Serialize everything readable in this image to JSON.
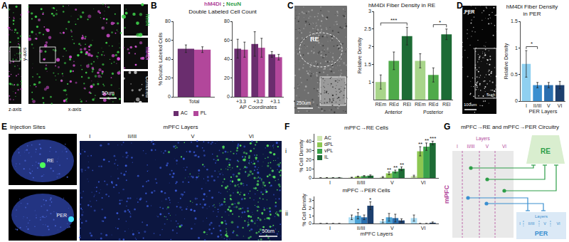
{
  "panels": {
    "A": {
      "letter": "A",
      "axes": [
        "z-axis",
        "y-axis",
        "x-axis"
      ],
      "scale_bar": "50um",
      "insets": [
        {
          "text": "NeuN",
          "color": "#3fd24a"
        },
        {
          "text": "hM4Di",
          "color": "#e05adf"
        },
        {
          "text": "Combined",
          "color": "#ffffff"
        }
      ]
    },
    "B": {
      "letter": "B",
      "header": [
        {
          "text": "hM4Di",
          "color": "#b2479b"
        },
        {
          "text": " ; ",
          "color": "#222222"
        },
        {
          "text": "NeuN",
          "color": "#2e9e48"
        }
      ],
      "title": "Double Labeled Cell Count"
    },
    "C": {
      "letter": "C",
      "image_label": "RE",
      "scale_bar": "250um"
    },
    "D": {
      "letter": "D",
      "image_label": "PER",
      "scale_bar": "100um",
      "inset_scale_bar": "5um"
    },
    "E": {
      "letter": "E",
      "injection_title": "Injection Sites",
      "injection_labels": [
        "RE",
        "PER"
      ],
      "layers_title": "mPFC Layers",
      "layers": [
        "I",
        "II/III",
        "V",
        "VI"
      ],
      "scale_bar": "50um"
    },
    "F": {
      "letter": "F"
    },
    "G": {
      "letter": "G",
      "title": "mPFC→RE and mPFC→PER Circuitry",
      "mpfc": {
        "label": "mPFC",
        "layers_title": "Layers",
        "layers": [
          "I",
          "II/III",
          "V",
          "VI"
        ]
      },
      "re": {
        "label": "RE"
      },
      "per": {
        "label": "PER",
        "layers_title": "Layers",
        "layers": [
          "I",
          "II/III",
          "V",
          "VI"
        ]
      }
    }
  },
  "chart_data": [
    {
      "type": "bar",
      "y_title": "% Double Labeled Cells",
      "categories": [
        "Total"
      ],
      "series": [
        {
          "name": "AC",
          "color": "#6a2d6e",
          "values": [
            51
          ],
          "errors": [
            4
          ]
        },
        {
          "name": "PL",
          "color": "#b2479b",
          "values": [
            50
          ],
          "errors": [
            3
          ]
        }
      ],
      "ylim": [
        0,
        80
      ],
      "yticks": [
        0,
        20,
        40,
        60,
        80
      ],
      "legend": "bottom"
    },
    {
      "type": "bar",
      "x_title": "AP Coordinates",
      "categories": [
        "+3.3",
        "+3.2",
        "+3.1"
      ],
      "series": [
        {
          "name": "AC",
          "color": "#6a2d6e",
          "values": [
            51,
            56,
            45
          ],
          "errors": [
            10,
            13,
            3
          ]
        },
        {
          "name": "PL",
          "color": "#b2479b",
          "values": [
            50,
            52,
            42
          ],
          "errors": [
            8,
            10,
            3
          ]
        }
      ],
      "ylim": [
        0,
        80
      ],
      "yticks": [
        0,
        20,
        40,
        60,
        80
      ]
    },
    {
      "type": "bar",
      "title": "hM4Di Fiber Density in RE",
      "y_title": "Relative Density",
      "categories": [
        "REm",
        "REd",
        "REl",
        "REm",
        "REd",
        "REl"
      ],
      "groups": [
        {
          "label": "Anterior",
          "from": 0,
          "to": 2
        },
        {
          "label": "Posterior",
          "from": 3,
          "to": 5
        }
      ],
      "values": [
        1.0,
        1.6,
        2.3,
        1.6,
        1.2,
        2.35
      ],
      "errors": [
        0.2,
        0.25,
        0.25,
        0.2,
        0.2,
        0.15
      ],
      "colors": [
        "#a8d58a",
        "#4faa4a",
        "#1d6b35",
        "#a8d58a",
        "#4faa4a",
        "#1d6b35"
      ],
      "ylim": [
        0.5,
        3
      ],
      "yticks": [
        1,
        1.5,
        2,
        2.5,
        3
      ],
      "annotations": [
        {
          "from": 0,
          "to": 2,
          "text": "***"
        },
        {
          "from": 4,
          "to": 5,
          "text": "*"
        }
      ]
    },
    {
      "type": "bar",
      "title": "hM4Di Fiber Density in PER",
      "y_title": "Relative Density",
      "x_title": "PER Layers",
      "categories": [
        "I",
        "II/III",
        "V",
        "VI"
      ],
      "values": [
        0.7,
        0.3,
        0.3,
        0.3
      ],
      "errors": [
        0.25,
        0.05,
        0.05,
        0.07
      ],
      "colors": [
        "#8fd0f0",
        "#3a8fd0",
        "#2a6fb0",
        "#1c3f6e"
      ],
      "ylim": [
        0,
        1.5
      ],
      "yticks": [
        0,
        0.5,
        1,
        1.5
      ],
      "annotations": [
        {
          "from": 0,
          "to": 1,
          "text": "*"
        }
      ]
    },
    {
      "type": "bar",
      "panel_label": "i",
      "title": "mPFC→RE Cells",
      "y_title": "% Cell Density",
      "categories": [
        "I",
        "II/III",
        "V",
        "VI"
      ],
      "series": [
        {
          "name": "AC",
          "color": "#cfe8b0",
          "values": [
            0.1,
            0.5,
            1,
            2
          ],
          "errors": [
            0.1,
            0.3,
            0.5,
            1
          ]
        },
        {
          "name": "dPL",
          "color": "#8cc751",
          "values": [
            0.2,
            1.5,
            5,
            29
          ],
          "errors": [
            0.1,
            0.5,
            1.5,
            5
          ]
        },
        {
          "name": "vPL",
          "color": "#3aa24a",
          "values": [
            0.2,
            2,
            7,
            34
          ],
          "errors": [
            0.1,
            0.6,
            1.5,
            4
          ]
        },
        {
          "name": "IL",
          "color": "#1d6b35",
          "values": [
            0.3,
            2.5,
            10,
            38
          ],
          "errors": [
            0.2,
            0.8,
            2,
            2
          ]
        }
      ],
      "ylim": [
        0,
        48
      ],
      "yticks": [
        0,
        10,
        20,
        30,
        40
      ],
      "legend": "top left",
      "annotations": [
        {
          "category": "V",
          "series": "dPL",
          "text": "**"
        },
        {
          "category": "V",
          "series": "vPL",
          "text": "**"
        },
        {
          "category": "V",
          "series": "IL",
          "text": "**"
        },
        {
          "category": "VI",
          "series": "dPL",
          "text": "**"
        },
        {
          "category": "VI",
          "series": "vPL",
          "text": "**"
        },
        {
          "category": "VI",
          "series": "IL",
          "text": "***"
        }
      ]
    },
    {
      "type": "bar",
      "panel_label": "ii",
      "title": "mPFC→PER Cells",
      "y_title": "% Cell Density",
      "x_title": "mPFC Layers",
      "categories": [
        "I",
        "II/III",
        "V",
        "VI"
      ],
      "series": [
        {
          "name": "AC",
          "color": "#a9dcf4",
          "values": [
            0,
            0.8,
            0.3,
            0.7
          ],
          "errors": [
            0,
            0.3,
            0.2,
            0.4
          ]
        },
        {
          "name": "dPL",
          "color": "#4aa3d6",
          "values": [
            0,
            1.0,
            0.8,
            0
          ],
          "errors": [
            0,
            0.4,
            0.5,
            0
          ]
        },
        {
          "name": "vPL",
          "color": "#2a6fb0",
          "values": [
            0,
            0.8,
            0.7,
            0
          ],
          "errors": [
            0,
            0.3,
            0.5,
            0
          ]
        },
        {
          "name": "IL",
          "color": "#1c3f6e",
          "values": [
            0,
            2.3,
            0.4,
            0.1
          ],
          "errors": [
            0,
            0.5,
            0.2,
            0.1
          ]
        }
      ],
      "ylim": [
        0,
        3.5
      ],
      "yticks": [
        0,
        1,
        2,
        3
      ],
      "annotations": [
        {
          "category": "II/III",
          "series": "dPL",
          "text": "*"
        },
        {
          "category": "II/III",
          "series": "IL",
          "text": "*"
        }
      ]
    }
  ]
}
